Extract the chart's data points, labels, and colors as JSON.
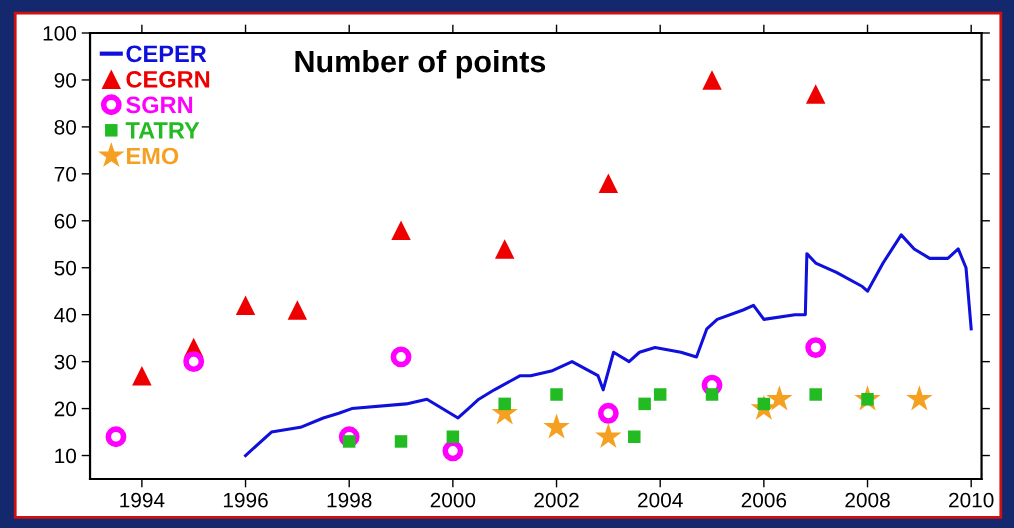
{
  "chart_data": {
    "type": "scatter",
    "title": "Number of points",
    "xlim": [
      1993,
      2010.2
    ],
    "xticks": [
      1994,
      1996,
      1998,
      2000,
      2002,
      2004,
      2006,
      2008,
      2010
    ],
    "ylim": [
      5,
      100
    ],
    "yticks": [
      10,
      20,
      30,
      40,
      50,
      60,
      70,
      80,
      90,
      100
    ],
    "grid": false,
    "legend": "top left",
    "series": [
      {
        "name": "CEPER",
        "type": "line",
        "marker": "none",
        "line_style": "solid",
        "color": "#1010dd",
        "x": [
          1996.0,
          1996.5,
          1997.06,
          1997.5,
          1997.8,
          1998.05,
          1999.1,
          1999.5,
          2000.1,
          2000.3,
          2000.5,
          2000.8,
          2001.3,
          2001.5,
          2001.9,
          2002.3,
          2002.8,
          2002.9,
          2003.1,
          2003.4,
          2003.6,
          2003.9,
          2004.4,
          2004.7,
          2004.9,
          2005.1,
          2005.6,
          2005.8,
          2006.0,
          2006.6,
          2006.8,
          2006.83,
          2007.0,
          2007.4,
          2007.9,
          2008.0,
          2008.3,
          2008.65,
          2008.9,
          2009.2,
          2009.55,
          2009.75,
          2009.9,
          2010.0
        ],
        "values": [
          10,
          15,
          16,
          18,
          19,
          20,
          21,
          22,
          18,
          20,
          22,
          24,
          27,
          27,
          28,
          30,
          27,
          24,
          32,
          30,
          32,
          33,
          32,
          31,
          37,
          39,
          41,
          42,
          39,
          40,
          40,
          53,
          51,
          49,
          46,
          45,
          51,
          57,
          54,
          52,
          52,
          54,
          50,
          37
        ]
      },
      {
        "name": "CEGRN",
        "marker": "triangle",
        "color": "#ee0000",
        "x": [
          1994,
          1995,
          1996,
          1997,
          1999,
          2001,
          2003,
          2005,
          2007
        ],
        "values": [
          27,
          33,
          42,
          41,
          58,
          54,
          68,
          90,
          87
        ]
      },
      {
        "name": "SGRN",
        "marker": "circle",
        "color": "#ff00ff",
        "x": [
          1993.5,
          1995,
          1998,
          1999,
          2000,
          2003,
          2005,
          2007
        ],
        "values": [
          14,
          30,
          14,
          31,
          11,
          19,
          25,
          33
        ]
      },
      {
        "name": "TATRY",
        "marker": "square",
        "color": "#22bb22",
        "x": [
          1998,
          1999,
          2000,
          2001,
          2002,
          2003.5,
          2003.7,
          2004,
          2005,
          2006,
          2007,
          2008
        ],
        "values": [
          13,
          13,
          14,
          21,
          23,
          14,
          21,
          23,
          23,
          21,
          23,
          22
        ]
      },
      {
        "name": "EMO",
        "marker": "star",
        "color": "#f5a020",
        "x": [
          2001,
          2002,
          2003,
          2006,
          2006.3,
          2008,
          2009
        ],
        "values": [
          19,
          16,
          14,
          20,
          22,
          22,
          22
        ]
      }
    ]
  }
}
